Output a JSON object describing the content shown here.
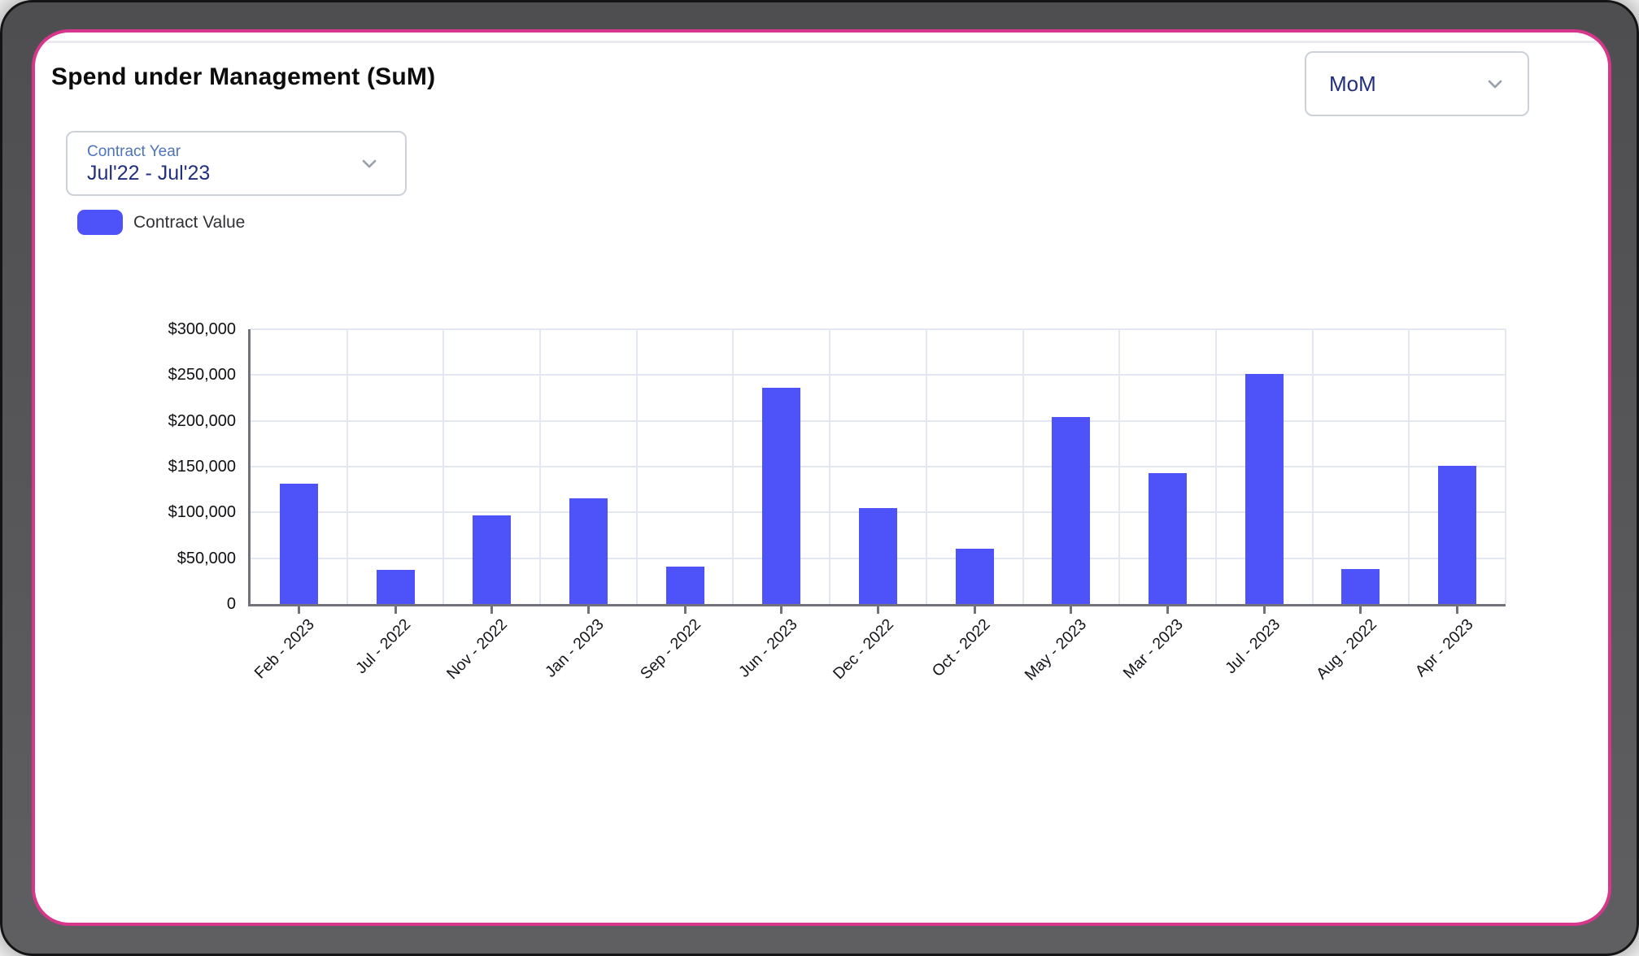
{
  "header": {
    "title": "Spend under Management (SuM)"
  },
  "period_dropdown": {
    "value": "MoM",
    "icon": "chevron-down-icon"
  },
  "contract_year_dropdown": {
    "label": "Contract Year",
    "value": "Jul'22 - Jul'23",
    "icon": "chevron-down-icon"
  },
  "legend": {
    "label": "Contract Value",
    "swatch_color": "#4e52f9"
  },
  "chart_data": {
    "type": "bar",
    "title": "Spend under Management (SuM)",
    "categories": [
      "Feb - 2023",
      "Jul - 2022",
      "Nov - 2022",
      "Jan - 2023",
      "Sep - 2022",
      "Jun - 2023",
      "Dec - 2022",
      "Oct - 2022",
      "May - 2023",
      "Mar - 2023",
      "Jul - 2023",
      "Aug - 2022",
      "Apr - 2023"
    ],
    "series": [
      {
        "name": "Contract Value",
        "values": [
          131000,
          37000,
          97000,
          115000,
          41000,
          236000,
          105000,
          60000,
          204000,
          143000,
          251000,
          38000,
          151000
        ]
      }
    ],
    "xlabel": "",
    "ylabel": "",
    "ylim": [
      0,
      300000
    ],
    "ytick_step": 50000,
    "ytick_labels": [
      "0",
      "$50,000",
      "$100,000",
      "$150,000",
      "$200,000",
      "$250,000",
      "$300,000"
    ],
    "grid": true,
    "legend_position": "top-left",
    "bar_color": "#4e52f9"
  },
  "colors": {
    "accent_pink": "#d6368b",
    "frame_gray": "#565658",
    "bar_blue": "#4e52f9",
    "navy_text": "#22307c",
    "label_blue": "#4d74ba",
    "grid_line": "#e3e7f2",
    "axis_line": "#72727c"
  }
}
